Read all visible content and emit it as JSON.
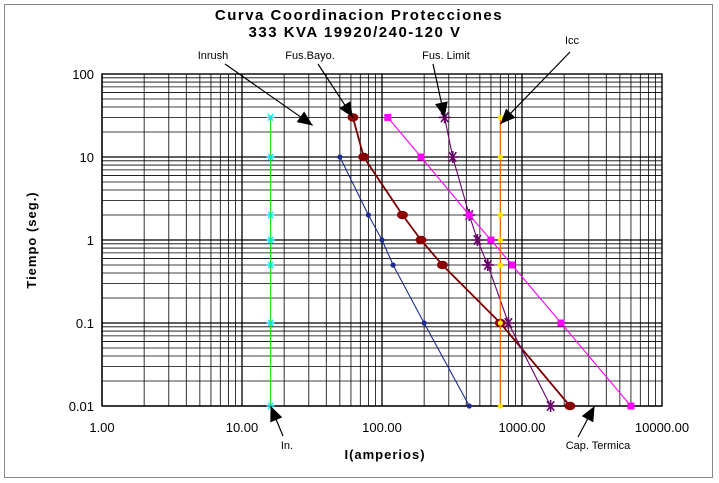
{
  "chart_data": {
    "type": "scatter",
    "title": "Curva Coordinacion Protecciones",
    "subtitle": "333 KVA 19920/240-120 V",
    "xlabel": "I(amperios)",
    "ylabel": "Tiempo (seg.)",
    "xscale": "log",
    "yscale": "log",
    "xlim": [
      1,
      10000
    ],
    "ylim": [
      0.01,
      100
    ],
    "xticks": [
      "1.00",
      "10.00",
      "100.00",
      "1000.00",
      "10000.00"
    ],
    "yticks": [
      "100",
      "10",
      "1",
      "0.1",
      "0.01"
    ],
    "grid": true,
    "series": [
      {
        "key": "in",
        "color": "#22dd22",
        "marker": "star",
        "marker_color": "#00e5ff",
        "x": [
          16,
          16,
          16,
          16,
          16,
          16,
          16
        ],
        "y": [
          30,
          10,
          2,
          1,
          0.5,
          0.1,
          0.01
        ]
      },
      {
        "key": "inrush",
        "color": "#1a2a90",
        "marker": "dot",
        "marker_color": "#1a2a90",
        "x": [
          50,
          80,
          100,
          120,
          200,
          420
        ],
        "y": [
          10,
          2,
          1,
          0.5,
          0.1,
          0.01
        ]
      },
      {
        "key": "bayo",
        "color": "#7a0000",
        "marker": "oval",
        "marker_color": "#8b0000",
        "x": [
          62,
          74,
          140,
          190,
          270,
          700,
          2200
        ],
        "y": [
          30,
          10,
          2,
          1,
          0.5,
          0.1,
          0.01
        ]
      },
      {
        "key": "limit",
        "color": "#660066",
        "marker": "asterisk",
        "marker_color": "#660066",
        "x": [
          280,
          320,
          420,
          480,
          570,
          800,
          1600
        ],
        "y": [
          30,
          10,
          2,
          1,
          0.5,
          0.1,
          0.01
        ]
      },
      {
        "key": "termica",
        "color": "#ff00ff",
        "marker": "square",
        "marker_color": "#ff00ff",
        "x": [
          110,
          190,
          420,
          600,
          850,
          1900,
          6000
        ],
        "y": [
          30,
          10,
          2,
          1,
          0.5,
          0.1,
          0.01
        ]
      },
      {
        "key": "icc",
        "color": "#ff6600",
        "marker": "dot",
        "marker_color": "#ffe600",
        "x": [
          700,
          700,
          700,
          700,
          700,
          700,
          700
        ],
        "y": [
          30,
          10,
          2,
          1,
          0.5,
          0.1,
          0.01
        ]
      }
    ],
    "annotations": [
      {
        "text": "Inrush",
        "series": "inrush",
        "point": [
          32,
          24
        ]
      },
      {
        "text": "Fus.Bayo.",
        "series": "bayo",
        "point": [
          62,
          30
        ]
      },
      {
        "text": "Fus. Limit",
        "series": "limit",
        "point": [
          280,
          30
        ]
      },
      {
        "text": "Icc",
        "series": "icc",
        "point": [
          700,
          25
        ]
      },
      {
        "text": "In.",
        "series": "in",
        "point": [
          16,
          0.01
        ]
      },
      {
        "text": "Cap. Termica",
        "series": "termica",
        "point": [
          3300,
          0.01
        ]
      }
    ]
  }
}
